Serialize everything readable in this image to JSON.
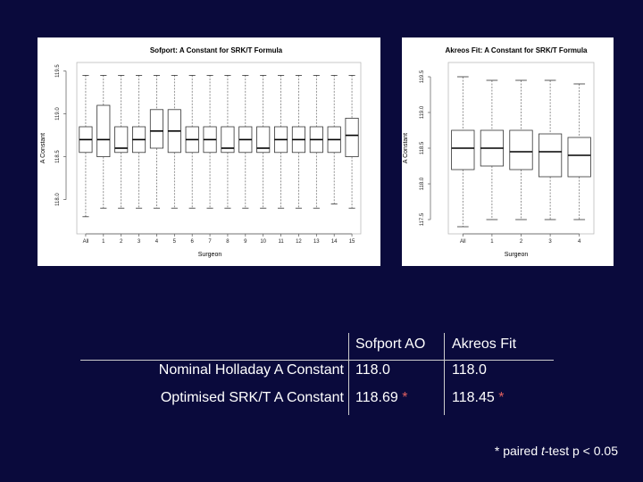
{
  "chart_data": [
    {
      "type": "box",
      "title": "Sofport: A Constant for SRK/T Formula",
      "xlabel": "Surgeon",
      "ylabel": "A Constant",
      "ylim": [
        117.6,
        119.6
      ],
      "yticks": [
        118.0,
        118.5,
        119.0,
        119.5
      ],
      "ytick_labels": [
        "118.0",
        "118.5",
        "119.0",
        "119.5"
      ],
      "categories": [
        "All",
        "1",
        "2",
        "3",
        "4",
        "5",
        "6",
        "7",
        "8",
        "9",
        "10",
        "11",
        "12",
        "13",
        "14",
        "15"
      ],
      "boxes": [
        {
          "min": 117.8,
          "q1": 118.55,
          "median": 118.7,
          "q3": 118.85,
          "max": 119.45
        },
        {
          "min": 117.9,
          "q1": 118.5,
          "median": 118.7,
          "q3": 119.1,
          "max": 119.45
        },
        {
          "min": 117.9,
          "q1": 118.55,
          "median": 118.6,
          "q3": 118.85,
          "max": 119.45
        },
        {
          "min": 117.9,
          "q1": 118.55,
          "median": 118.7,
          "q3": 118.85,
          "max": 119.45
        },
        {
          "min": 117.9,
          "q1": 118.6,
          "median": 118.8,
          "q3": 119.05,
          "max": 119.45
        },
        {
          "min": 117.9,
          "q1": 118.55,
          "median": 118.8,
          "q3": 119.05,
          "max": 119.45
        },
        {
          "min": 117.9,
          "q1": 118.55,
          "median": 118.7,
          "q3": 118.85,
          "max": 119.45
        },
        {
          "min": 117.9,
          "q1": 118.55,
          "median": 118.7,
          "q3": 118.85,
          "max": 119.45
        },
        {
          "min": 117.9,
          "q1": 118.55,
          "median": 118.6,
          "q3": 118.85,
          "max": 119.45
        },
        {
          "min": 117.9,
          "q1": 118.55,
          "median": 118.7,
          "q3": 118.85,
          "max": 119.45
        },
        {
          "min": 117.9,
          "q1": 118.55,
          "median": 118.6,
          "q3": 118.85,
          "max": 119.45
        },
        {
          "min": 117.9,
          "q1": 118.55,
          "median": 118.7,
          "q3": 118.85,
          "max": 119.45
        },
        {
          "min": 117.9,
          "q1": 118.55,
          "median": 118.7,
          "q3": 118.85,
          "max": 119.45
        },
        {
          "min": 117.9,
          "q1": 118.55,
          "median": 118.7,
          "q3": 118.85,
          "max": 119.45
        },
        {
          "min": 117.95,
          "q1": 118.55,
          "median": 118.7,
          "q3": 118.85,
          "max": 119.45
        },
        {
          "min": 117.9,
          "q1": 118.5,
          "median": 118.75,
          "q3": 118.95,
          "max": 119.45
        }
      ],
      "grid": false
    },
    {
      "type": "box",
      "title": "Akreos Fit: A Constant for SRK/T Formula",
      "xlabel": "Surgeon",
      "ylabel": "A Constant",
      "ylim": [
        117.3,
        119.7
      ],
      "yticks": [
        117.5,
        118.0,
        118.5,
        119.0,
        119.5
      ],
      "ytick_labels": [
        "117.5",
        "118.0",
        "118.5",
        "119.0",
        "119.5"
      ],
      "categories": [
        "All",
        "1",
        "2",
        "3",
        "4"
      ],
      "boxes": [
        {
          "min": 117.4,
          "q1": 118.2,
          "median": 118.5,
          "q3": 118.75,
          "max": 119.5
        },
        {
          "min": 117.5,
          "q1": 118.25,
          "median": 118.5,
          "q3": 118.75,
          "max": 119.45
        },
        {
          "min": 117.5,
          "q1": 118.2,
          "median": 118.45,
          "q3": 118.75,
          "max": 119.45
        },
        {
          "min": 117.5,
          "q1": 118.1,
          "median": 118.45,
          "q3": 118.7,
          "max": 119.45
        },
        {
          "min": 117.5,
          "q1": 118.1,
          "median": 118.4,
          "q3": 118.65,
          "max": 119.4
        }
      ],
      "grid": false
    }
  ],
  "table": {
    "columns": [
      "Sofport AO",
      "Akreos Fit"
    ],
    "rows": [
      {
        "label": "Nominal Holladay A Constant",
        "values": [
          "118.0",
          "118.0"
        ],
        "stars": [
          "",
          ""
        ]
      },
      {
        "label": "Optimised SRK/T A Constant",
        "values": [
          "118.69",
          "118.45"
        ],
        "stars": [
          "*",
          "*"
        ]
      }
    ]
  },
  "footnote": {
    "star": "*",
    "text_before": "paired ",
    "italic": "t",
    "text_after": "-test p < 0.05"
  }
}
